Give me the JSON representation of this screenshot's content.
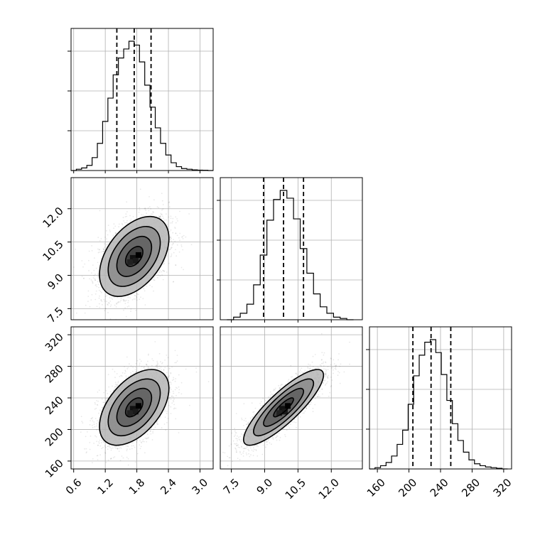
{
  "chart_data": {
    "type": "corner",
    "params": [
      {
        "ticks": [
          0.6,
          1.2,
          1.8,
          2.4,
          3.0
        ],
        "tick_labels": [
          "0.6",
          "1.2",
          "1.8",
          "2.4",
          "3.0"
        ],
        "range": [
          0.55,
          3.25
        ],
        "mean": 1.75,
        "sd": 0.33,
        "quantiles": [
          1.42,
          1.75,
          2.07
        ]
      },
      {
        "ticks": [
          7.5,
          9.0,
          10.5,
          12.0
        ],
        "tick_labels": [
          "7.5",
          "9.0",
          "10.5",
          "12.0"
        ],
        "range": [
          7.0,
          13.4
        ],
        "mean": 9.85,
        "sd": 0.9,
        "quantiles": [
          8.95,
          9.85,
          10.75
        ]
      },
      {
        "ticks": [
          160,
          200,
          240,
          280,
          320
        ],
        "tick_labels": [
          "160",
          "200",
          "240",
          "280",
          "320"
        ],
        "range": [
          150,
          330
        ],
        "mean": 228,
        "sd": 24,
        "quantiles": [
          205,
          228,
          253
        ]
      }
    ],
    "correlations": {
      "0-1": 0.45,
      "0-2": 0.5,
      "1-2": 0.85
    },
    "histograms": [
      {
        "bins": [
          0.55,
          0.65,
          0.75,
          0.85,
          0.95,
          1.05,
          1.15,
          1.25,
          1.35,
          1.45,
          1.55,
          1.65,
          1.75,
          1.85,
          1.95,
          2.05,
          2.15,
          2.25,
          2.35,
          2.45,
          2.55,
          2.65,
          2.75,
          2.85,
          2.95,
          3.05,
          3.15,
          3.25
        ],
        "counts": [
          0.0,
          0.01,
          0.02,
          0.04,
          0.1,
          0.21,
          0.38,
          0.56,
          0.74,
          0.87,
          0.94,
          1.0,
          0.97,
          0.84,
          0.66,
          0.49,
          0.33,
          0.21,
          0.12,
          0.06,
          0.03,
          0.015,
          0.01,
          0.005,
          0.003,
          0.002,
          0.0
        ]
      },
      {
        "bins": [
          7.3,
          7.6,
          7.9,
          8.2,
          8.5,
          8.8,
          9.1,
          9.4,
          9.7,
          10.0,
          10.3,
          10.6,
          10.9,
          11.2,
          11.5,
          11.8,
          12.1,
          12.4,
          12.7,
          13.0
        ],
        "counts": [
          0.0,
          0.02,
          0.05,
          0.12,
          0.27,
          0.5,
          0.77,
          0.93,
          1.0,
          0.94,
          0.78,
          0.55,
          0.36,
          0.2,
          0.1,
          0.05,
          0.02,
          0.01,
          0.0
        ]
      },
      {
        "bins": [
          150,
          157,
          164,
          171,
          178,
          185,
          192,
          199,
          206,
          213,
          220,
          227,
          234,
          241,
          248,
          255,
          262,
          269,
          276,
          283,
          290,
          297,
          304,
          311,
          318,
          325
        ],
        "counts": [
          0.0,
          0.01,
          0.025,
          0.05,
          0.1,
          0.19,
          0.3,
          0.5,
          0.72,
          0.88,
          0.98,
          1.0,
          0.9,
          0.73,
          0.53,
          0.35,
          0.22,
          0.13,
          0.07,
          0.04,
          0.025,
          0.015,
          0.01,
          0.005,
          0.0
        ]
      }
    ],
    "grid": true
  }
}
